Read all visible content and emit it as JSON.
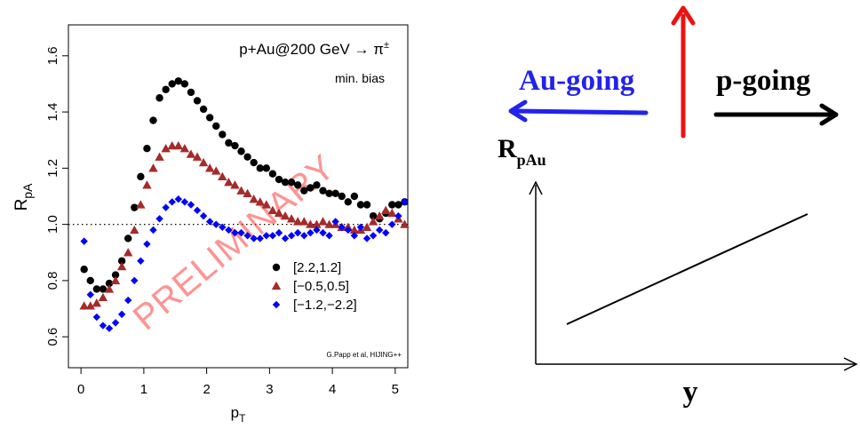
{
  "chart_data": {
    "type": "scatter",
    "title": "p+Au@200 GeV → π",
    "title_superscript": "±",
    "subtitle": "min. bias",
    "watermark": "PRELIMINARY",
    "credit": "G.Papp et al, HIJING++",
    "xlabel_main": "p",
    "xlabel_sub": "T",
    "ylabel_main": "R",
    "ylabel_sub": "pA",
    "xlim": [
      -0.2,
      5.2
    ],
    "ylim": [
      0.49,
      1.71
    ],
    "x_ticks": [
      "0",
      "1",
      "2",
      "3",
      "4",
      "5"
    ],
    "y_ticks": [
      "0.6",
      "0.8",
      "1.0",
      "1.2",
      "1.4",
      "1.6"
    ],
    "reference_line": 1.0,
    "legend_position": "bottom-right",
    "series": [
      {
        "name": "[2.2,1.2]",
        "marker": "circle",
        "color": "#000000",
        "x": [
          0.05,
          0.15,
          0.25,
          0.35,
          0.45,
          0.55,
          0.65,
          0.75,
          0.85,
          0.95,
          1.05,
          1.15,
          1.25,
          1.35,
          1.45,
          1.55,
          1.65,
          1.75,
          1.85,
          1.95,
          2.05,
          2.15,
          2.25,
          2.35,
          2.45,
          2.55,
          2.65,
          2.75,
          2.85,
          2.95,
          3.05,
          3.15,
          3.25,
          3.35,
          3.45,
          3.55,
          3.65,
          3.75,
          3.85,
          3.95,
          4.05,
          4.15,
          4.25,
          4.35,
          4.45,
          4.55,
          4.65,
          4.75,
          4.85,
          4.95,
          5.05,
          5.15
        ],
        "y": [
          0.84,
          0.8,
          0.77,
          0.77,
          0.79,
          0.82,
          0.87,
          0.95,
          1.06,
          1.17,
          1.27,
          1.37,
          1.45,
          1.48,
          1.5,
          1.51,
          1.5,
          1.47,
          1.44,
          1.41,
          1.38,
          1.35,
          1.32,
          1.29,
          1.28,
          1.26,
          1.24,
          1.22,
          1.2,
          1.2,
          1.18,
          1.16,
          1.15,
          1.15,
          1.14,
          1.12,
          1.13,
          1.14,
          1.12,
          1.11,
          1.11,
          1.1,
          1.08,
          1.1,
          1.07,
          1.07,
          1.03,
          1.02,
          1.04,
          1.07,
          1.07,
          1.08
        ]
      },
      {
        "name": "[−0.5,0.5]",
        "marker": "triangle",
        "color": "#a52a2a",
        "x": [
          0.05,
          0.15,
          0.25,
          0.35,
          0.45,
          0.55,
          0.65,
          0.75,
          0.85,
          0.95,
          1.05,
          1.15,
          1.25,
          1.35,
          1.45,
          1.55,
          1.65,
          1.75,
          1.85,
          1.95,
          2.05,
          2.15,
          2.25,
          2.35,
          2.45,
          2.55,
          2.65,
          2.75,
          2.85,
          2.95,
          3.05,
          3.15,
          3.25,
          3.35,
          3.45,
          3.55,
          3.65,
          3.75,
          3.85,
          3.95,
          4.05,
          4.15,
          4.25,
          4.35,
          4.45,
          4.55,
          4.65,
          4.75,
          4.85,
          4.95,
          5.05,
          5.15
        ],
        "y": [
          0.71,
          0.71,
          0.72,
          0.74,
          0.77,
          0.8,
          0.85,
          0.9,
          0.98,
          1.07,
          1.14,
          1.2,
          1.24,
          1.27,
          1.28,
          1.28,
          1.27,
          1.25,
          1.24,
          1.22,
          1.2,
          1.19,
          1.17,
          1.15,
          1.14,
          1.12,
          1.11,
          1.09,
          1.08,
          1.07,
          1.05,
          1.04,
          1.03,
          1.02,
          1.01,
          1.01,
          1.0,
          1.0,
          1.01,
          1.0,
          1.0,
          0.99,
          0.99,
          0.98,
          0.98,
          0.99,
          1.01,
          1.03,
          1.05,
          1.04,
          1.02,
          1.0
        ]
      },
      {
        "name": "[−1.2,−2.2]",
        "marker": "diamond",
        "color": "#0000ff",
        "x": [
          0.05,
          0.15,
          0.25,
          0.35,
          0.45,
          0.55,
          0.65,
          0.75,
          0.85,
          0.95,
          1.05,
          1.15,
          1.25,
          1.35,
          1.45,
          1.55,
          1.65,
          1.75,
          1.85,
          1.95,
          2.05,
          2.15,
          2.25,
          2.35,
          2.45,
          2.55,
          2.65,
          2.75,
          2.85,
          2.95,
          3.05,
          3.15,
          3.25,
          3.35,
          3.45,
          3.55,
          3.65,
          3.75,
          3.85,
          3.95,
          4.05,
          4.15,
          4.25,
          4.35,
          4.45,
          4.55,
          4.65,
          4.75,
          4.85,
          4.95,
          5.05,
          5.15
        ],
        "y": [
          0.94,
          0.75,
          0.67,
          0.64,
          0.63,
          0.65,
          0.68,
          0.73,
          0.8,
          0.87,
          0.93,
          0.98,
          1.02,
          1.06,
          1.08,
          1.09,
          1.08,
          1.07,
          1.05,
          1.03,
          1.01,
          1.0,
          0.99,
          0.98,
          0.97,
          0.97,
          0.96,
          0.95,
          0.95,
          0.96,
          0.96,
          0.97,
          0.95,
          0.96,
          0.97,
          0.96,
          0.97,
          0.98,
          0.97,
          0.96,
          1.01,
          0.99,
          0.98,
          0.96,
          0.99,
          0.95,
          0.96,
          0.98,
          0.97,
          1.0,
          1.03,
          1.08
        ]
      }
    ]
  },
  "diagram": {
    "left_arrow_label": "Au-going",
    "right_arrow_label": "p-going",
    "axis_y_label_main": "R",
    "axis_y_label_sub": "pAu",
    "axis_x_label": "y",
    "colors": {
      "left_arrow": "#2222ee",
      "up_arrow": "#ee1111",
      "right_arrow": "#000000"
    }
  }
}
